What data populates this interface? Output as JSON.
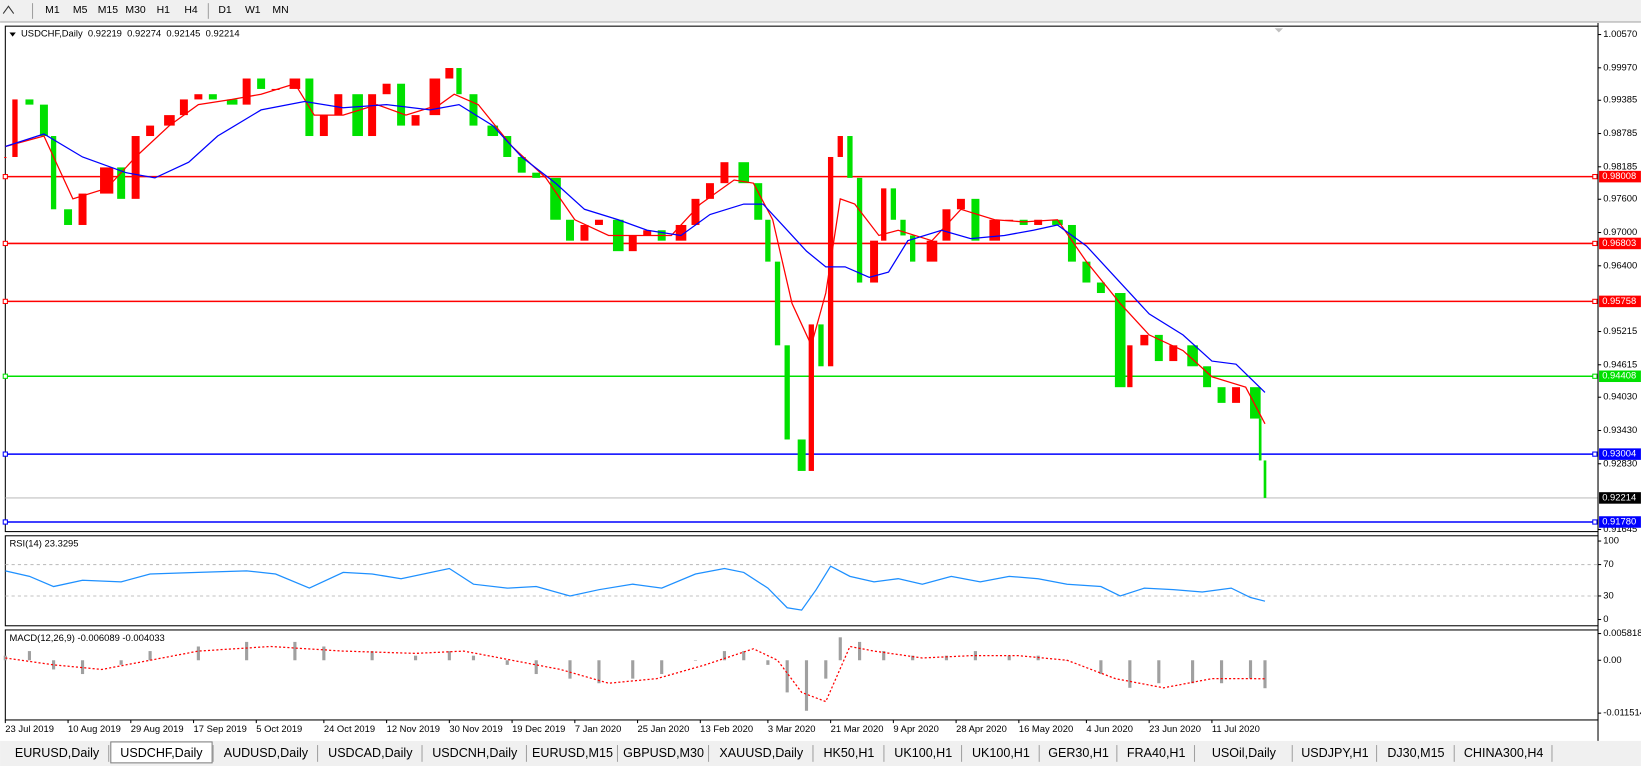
{
  "toolbar": {
    "timeframes": [
      "M1",
      "M5",
      "M15",
      "M30",
      "H1",
      "H4",
      "D1",
      "W1",
      "MN"
    ]
  },
  "chart_data": [
    {
      "type": "candlestick",
      "title": "USDCHF,Daily",
      "quote": {
        "open": 0.92219,
        "high": 0.92274,
        "low": 0.92145,
        "close": 0.92214
      },
      "up_color": "#ff0000",
      "down_color": "#00e000",
      "xlim": [
        0,
        330
      ],
      "xticks": [
        {
          "value": 0,
          "label": "23 Jul 2019"
        },
        {
          "value": 13,
          "label": "10 Aug 2019"
        },
        {
          "value": 26,
          "label": "29 Aug 2019"
        },
        {
          "value": 39,
          "label": "17 Sep 2019"
        },
        {
          "value": 52,
          "label": "5 Oct 2019"
        },
        {
          "value": 66,
          "label": "24 Oct 2019"
        },
        {
          "value": 79,
          "label": "12 Nov 2019"
        },
        {
          "value": 92,
          "label": "30 Nov 2019"
        },
        {
          "value": 105,
          "label": "19 Dec 2019"
        },
        {
          "value": 118,
          "label": "7 Jan 2020"
        },
        {
          "value": 131,
          "label": "25 Jan 2020"
        },
        {
          "value": 144,
          "label": "13 Feb 2020"
        },
        {
          "value": 158,
          "label": "3 Mar 2020"
        },
        {
          "value": 171,
          "label": "21 Mar 2020"
        },
        {
          "value": 184,
          "label": "9 Apr 2020"
        },
        {
          "value": 197,
          "label": "28 Apr 2020"
        },
        {
          "value": 210,
          "label": "16 May 2020"
        },
        {
          "value": 224,
          "label": "4 Jun 2020"
        },
        {
          "value": 237,
          "label": "23 Jun 2020"
        },
        {
          "value": 250,
          "label": "11 Jul 2020"
        }
      ],
      "ylim": [
        0.91607,
        1.00721
      ],
      "yticks": [
        {
          "value": 1.0057,
          "label": "1.00570"
        },
        {
          "value": 0.9997,
          "label": "0.99970"
        },
        {
          "value": 0.99385,
          "label": "0.99385"
        },
        {
          "value": 0.98785,
          "label": "0.98785"
        },
        {
          "value": 0.98185,
          "label": "0.98185"
        },
        {
          "value": 0.976,
          "label": "0.97600"
        },
        {
          "value": 0.97,
          "label": "0.97000"
        },
        {
          "value": 0.964,
          "label": "0.96400"
        },
        {
          "value": 0.95215,
          "label": "0.95215"
        },
        {
          "value": 0.94615,
          "label": "0.94615"
        },
        {
          "value": 0.9403,
          "label": "0.94030"
        },
        {
          "value": 0.9343,
          "label": "0.93430"
        },
        {
          "value": 0.9283,
          "label": "0.92830"
        },
        {
          "value": 0.91645,
          "label": "0.91645"
        }
      ],
      "levels": [
        {
          "value": 0.98008,
          "color": "#ff0000"
        },
        {
          "value": 0.96803,
          "color": "#ff0000"
        },
        {
          "value": 0.95758,
          "color": "#ff0000"
        },
        {
          "value": 0.94408,
          "color": "#00e000"
        },
        {
          "value": 0.93004,
          "color": "#0000ff"
        },
        {
          "value": 0.9178,
          "label": "0.91780",
          "color": "#0000ff"
        }
      ],
      "current_price": 0.92214,
      "series": [
        {
          "type": "candles",
          "x": [
            0,
            2,
            5,
            8,
            10,
            13,
            16,
            21,
            24,
            27,
            30,
            34,
            37,
            40,
            43,
            47,
            50,
            53,
            56,
            60,
            63,
            66,
            69,
            73,
            76,
            79,
            82,
            85,
            89,
            92,
            94,
            97,
            101,
            104,
            107,
            110,
            114,
            117,
            120,
            123,
            127,
            130,
            133,
            136,
            140,
            143,
            146,
            149,
            153,
            156,
            158,
            160,
            162,
            165,
            167,
            169,
            171,
            173,
            175,
            177,
            180,
            182,
            184,
            186,
            188,
            192,
            195,
            198,
            201,
            205,
            208,
            211,
            214,
            218,
            221,
            224,
            227,
            231,
            233,
            236,
            239,
            242,
            246,
            249,
            252,
            255,
            259,
            260,
            261
          ],
          "values": [
            0.98362,
            0.994,
            0.99306,
            0.9874,
            0.97419,
            0.97136,
            0.97702,
            0.98174,
            0.97607,
            0.9874,
            0.98928,
            0.99117,
            0.994,
            0.99494,
            0.994,
            0.99306,
            0.99777,
            0.99589,
            0.99589,
            0.99777,
            0.9874,
            0.99117,
            0.99494,
            0.9874,
            0.99494,
            0.99683,
            0.98928,
            0.99117,
            0.99777,
            0.99966,
            0.99494,
            0.98928,
            0.9874,
            0.98362,
            0.98079,
            0.97985,
            0.9723,
            0.96853,
            0.97136,
            0.9723,
            0.96664,
            0.96947,
            0.97041,
            0.96853,
            0.97136,
            0.97607,
            0.9789,
            0.98268,
            0.9789,
            0.9723,
            0.96475,
            0.94966,
            0.93268,
            0.92701,
            0.95343,
            0.94588,
            0.98362,
            0.9874,
            0.97985,
            0.96098,
            0.96853,
            0.97796,
            0.9723,
            0.96947,
            0.96475,
            0.96853,
            0.97419,
            0.97607,
            0.96853,
            0.9723,
            0.9723,
            0.97136,
            0.9723,
            0.97136,
            0.96475,
            0.96098,
            0.95909,
            0.94211,
            0.94966,
            0.95154,
            0.94682,
            0.94966,
            0.94588,
            0.94211,
            0.93928,
            0.94211,
            0.93645,
            0.9289,
            0.92214
          ]
        },
        {
          "type": "line",
          "color": "#ff0000",
          "x": [
            0,
            8,
            14,
            21,
            27,
            34,
            40,
            47,
            53,
            60,
            64,
            70,
            77,
            83,
            90,
            93,
            98,
            105,
            112,
            118,
            125,
            131,
            138,
            144,
            151,
            155,
            159,
            163,
            167,
            170,
            173,
            176,
            181,
            185,
            192,
            198,
            205,
            211,
            218,
            224,
            231,
            237,
            244,
            250,
            257,
            261
          ],
          "values": [
            0.98551,
            0.9874,
            0.97607,
            0.97796,
            0.98362,
            0.98928,
            0.99306,
            0.994,
            0.99494,
            0.99683,
            0.99117,
            0.99117,
            0.99306,
            0.99117,
            0.99306,
            0.99494,
            0.99306,
            0.98551,
            0.97985,
            0.9723,
            0.96947,
            0.96947,
            0.96947,
            0.97513,
            0.97947,
            0.9789,
            0.9723,
            0.95721,
            0.94966,
            0.95909,
            0.97607,
            0.97513,
            0.96947,
            0.97041,
            0.96853,
            0.97419,
            0.9723,
            0.97192,
            0.9723,
            0.96475,
            0.95721,
            0.95154,
            0.94871,
            0.94399,
            0.94211,
            0.93551
          ]
        },
        {
          "type": "line",
          "color": "#0000ff",
          "x": [
            0,
            8,
            16,
            25,
            31,
            38,
            44,
            53,
            62,
            70,
            79,
            88,
            94,
            101,
            107,
            114,
            120,
            127,
            133,
            140,
            146,
            153,
            157,
            161,
            166,
            170,
            174,
            179,
            183,
            187,
            194,
            200,
            207,
            213,
            218,
            224,
            231,
            237,
            244,
            250,
            255,
            261
          ],
          "values": [
            0.98551,
            0.98777,
            0.98362,
            0.98079,
            0.97985,
            0.98268,
            0.9874,
            0.99211,
            0.99362,
            0.99249,
            0.99306,
            0.99211,
            0.99306,
            0.98928,
            0.98362,
            0.9789,
            0.97419,
            0.9723,
            0.97041,
            0.96947,
            0.97324,
            0.97513,
            0.97513,
            0.97136,
            0.96664,
            0.96381,
            0.96381,
            0.96192,
            0.96287,
            0.96853,
            0.97041,
            0.9689,
            0.96947,
            0.97041,
            0.97136,
            0.96758,
            0.96098,
            0.95532,
            0.95154,
            0.94682,
            0.94626,
            0.94116
          ]
        }
      ]
    },
    {
      "type": "line",
      "title": "RSI(14) 23.3295",
      "xlim": [
        0,
        330
      ],
      "ylim": [
        -8,
        106.7
      ],
      "yticks": [
        100,
        70,
        30,
        0
      ],
      "levels": [
        70,
        30
      ],
      "series": [
        {
          "type": "line",
          "color": "#1e90ff",
          "x": [
            0,
            5,
            10,
            16,
            24,
            30,
            40,
            50,
            56,
            63,
            70,
            76,
            82,
            92,
            97,
            104,
            110,
            117,
            123,
            130,
            136,
            143,
            149,
            153,
            158,
            162,
            165,
            168,
            171,
            175,
            180,
            185,
            190,
            196,
            202,
            208,
            214,
            220,
            227,
            231,
            236,
            242,
            248,
            254,
            258,
            261
          ],
          "values": [
            62,
            55,
            42,
            50,
            48,
            58,
            60,
            62,
            58,
            40,
            60,
            58,
            52,
            65,
            45,
            40,
            42,
            30,
            38,
            45,
            40,
            58,
            65,
            60,
            40,
            15,
            12,
            38,
            68,
            55,
            48,
            52,
            45,
            55,
            48,
            55,
            52,
            45,
            42,
            30,
            40,
            38,
            35,
            40,
            28,
            23.3295
          ]
        }
      ]
    },
    {
      "type": "histogram",
      "title": "MACD(12,26,9) -0.006089 -0.004033",
      "xlim": [
        0,
        330
      ],
      "ylim": [
        -0.013,
        0.0066
      ],
      "yticks": [
        0.005818,
        {
          "value": 0,
          "label": "0.00"
        },
        -0.011514
      ],
      "series": [
        {
          "type": "histogram",
          "color": "#a0a0a0",
          "x": [
            0,
            5,
            10,
            16,
            24,
            30,
            40,
            50,
            60,
            66,
            76,
            85,
            92,
            97,
            104,
            110,
            117,
            123,
            130,
            136,
            143,
            149,
            153,
            158,
            162,
            166,
            170,
            173,
            177,
            182,
            188,
            195,
            201,
            208,
            214,
            220,
            227,
            233,
            239,
            246,
            252,
            258,
            261
          ],
          "values": [
            0.001,
            0.002,
            -0.002,
            -0.003,
            -0.001,
            0.002,
            0.003,
            0.004,
            0.004,
            0.003,
            0.002,
            0.001,
            0.002,
            0.001,
            -0.001,
            -0.003,
            -0.004,
            -0.005,
            -0.004,
            -0.003,
            0,
            0.002,
            0.002,
            -0.001,
            -0.007,
            -0.011,
            -0.004,
            0.005,
            0.004,
            0.002,
            0.001,
            0.001,
            0.002,
            0.001,
            0.001,
            0,
            -0.003,
            -0.006,
            -0.005,
            -0.005,
            -0.005,
            -0.004,
            -0.006089
          ]
        },
        {
          "type": "line",
          "color": "#ff0000",
          "dash": true,
          "x": [
            0,
            10,
            20,
            30,
            40,
            55,
            70,
            85,
            95,
            105,
            115,
            125,
            135,
            145,
            155,
            160,
            165,
            170,
            175,
            180,
            190,
            200,
            210,
            220,
            230,
            240,
            250,
            258,
            261
          ],
          "values": [
            0.0005,
            -0.001,
            -0.002,
            0,
            0.002,
            0.003,
            0.002,
            0.0015,
            0.002,
            0,
            -0.002,
            -0.005,
            -0.004,
            -0.001,
            0.0025,
            0,
            -0.007,
            -0.009,
            0.003,
            0.002,
            0.0005,
            0.001,
            0.001,
            0,
            -0.004,
            -0.006,
            -0.004,
            -0.004,
            -0.004033
          ]
        }
      ]
    }
  ],
  "tabs": [
    "EURUSD,Daily",
    "USDCHF,Daily",
    "AUDUSD,Daily",
    "USDCAD,Daily",
    "USDCNH,Daily",
    "EURUSD,M15",
    "GBPUSD,M30",
    "XAUUSD,Daily",
    "HK50,H1",
    "UK100,H1",
    "UK100,H1",
    "GER30,H1",
    "FRA40,H1",
    "USOil,Daily",
    "USDJPY,H1",
    "DJ30,M15",
    "CHINA300,H4"
  ],
  "active_tab": 1
}
